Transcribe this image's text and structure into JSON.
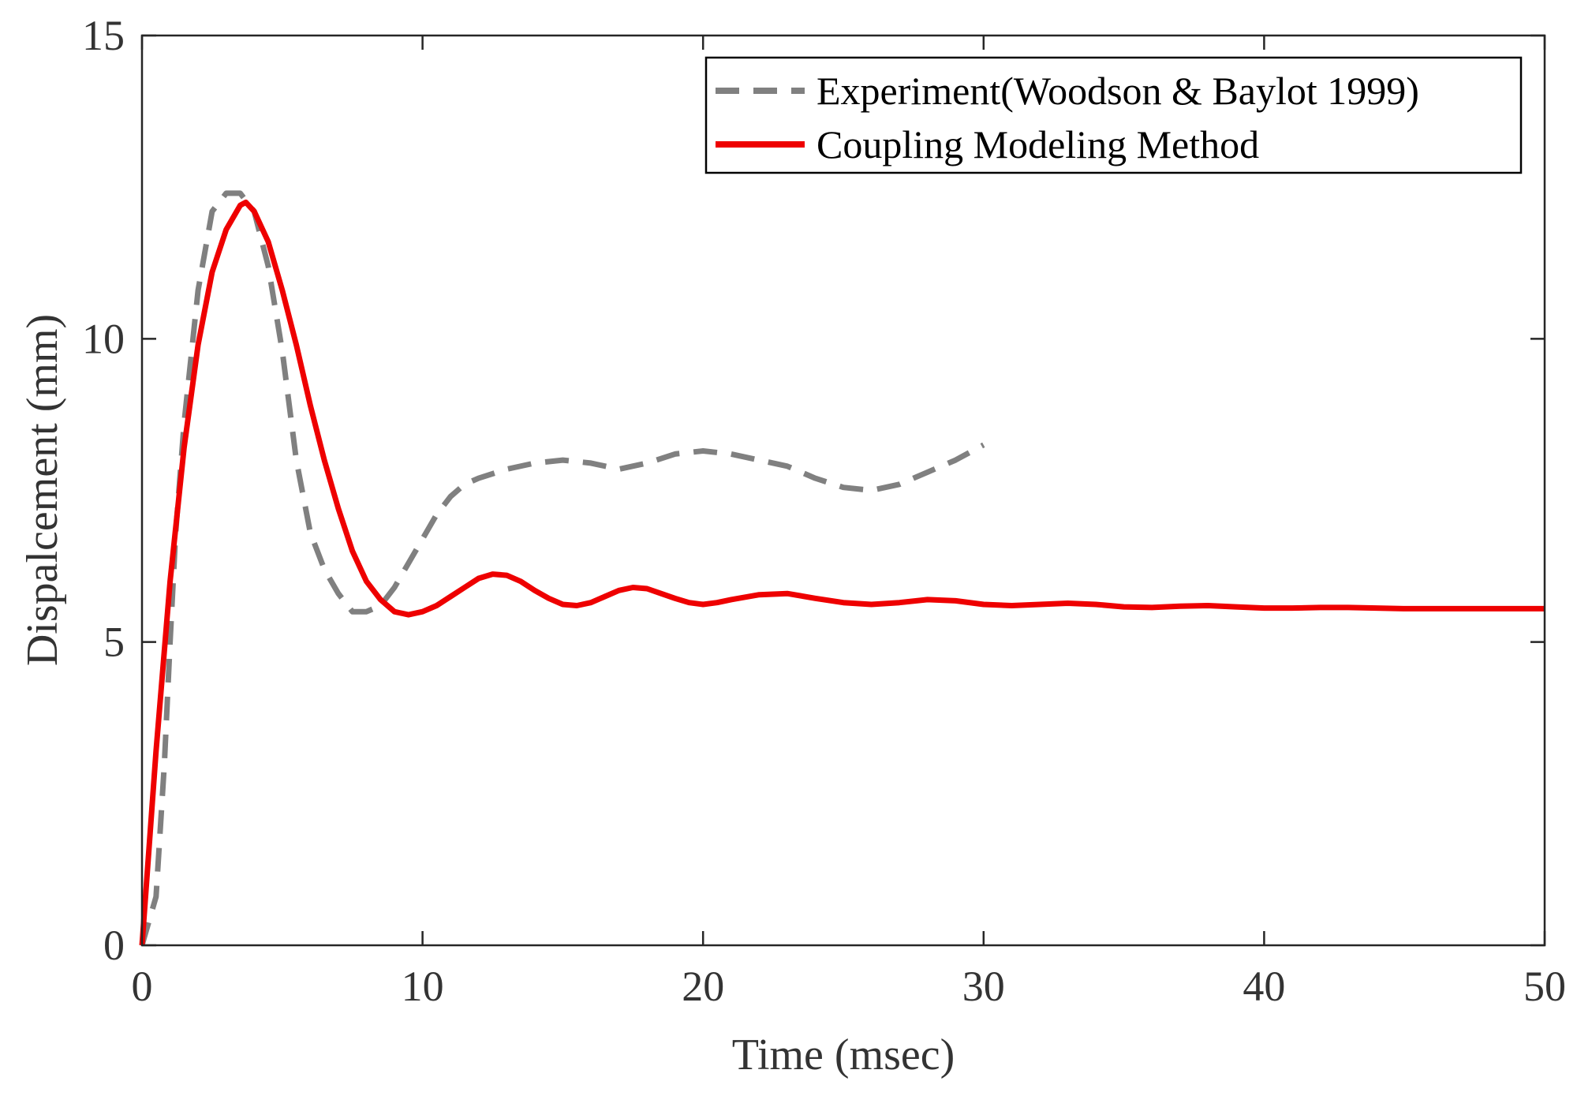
{
  "chart_data": {
    "type": "line",
    "title": "",
    "xlabel": "Time (msec)",
    "ylabel": "Dispalcement (mm)",
    "xlim": [
      0,
      50
    ],
    "ylim": [
      0,
      15
    ],
    "xticks": [
      0,
      10,
      20,
      30,
      40,
      50
    ],
    "yticks": [
      0,
      5,
      10,
      15
    ],
    "grid": false,
    "legend_position": "top-right",
    "series": [
      {
        "name": "Experiment(Woodson & Baylot 1999)",
        "style": "dashed",
        "color": "#808080",
        "x": [
          0,
          0.5,
          0.8,
          1.0,
          1.2,
          1.5,
          2.0,
          2.5,
          3.0,
          3.5,
          4.0,
          4.5,
          5.0,
          5.5,
          6.0,
          6.5,
          7.0,
          7.5,
          8.0,
          8.5,
          9.0,
          9.5,
          10.0,
          10.5,
          11.0,
          11.5,
          12.0,
          13.0,
          14.0,
          15.0,
          16.0,
          17.0,
          18.0,
          19.0,
          20.0,
          21.0,
          22.0,
          23.0,
          24.0,
          25.0,
          26.0,
          27.0,
          28.0,
          29.0,
          30.0
        ],
        "y": [
          0,
          0.8,
          3.0,
          5.0,
          6.8,
          8.6,
          10.8,
          12.1,
          12.4,
          12.4,
          12.1,
          11.2,
          9.8,
          8.0,
          6.8,
          6.2,
          5.8,
          5.5,
          5.5,
          5.6,
          5.9,
          6.3,
          6.7,
          7.1,
          7.4,
          7.6,
          7.7,
          7.85,
          7.95,
          8.0,
          7.95,
          7.85,
          7.95,
          8.1,
          8.15,
          8.1,
          8.0,
          7.9,
          7.7,
          7.55,
          7.5,
          7.6,
          7.8,
          8.0,
          8.25
        ]
      },
      {
        "name": "Coupling Modeling Method",
        "style": "solid",
        "color": "#ee0000",
        "x": [
          0,
          0.5,
          1.0,
          1.5,
          2.0,
          2.5,
          3.0,
          3.5,
          3.7,
          4.0,
          4.5,
          5.0,
          5.5,
          6.0,
          6.5,
          7.0,
          7.5,
          8.0,
          8.5,
          9.0,
          9.5,
          10.0,
          10.5,
          11.0,
          11.5,
          12.0,
          12.5,
          13.0,
          13.5,
          14.0,
          14.5,
          15.0,
          15.5,
          16.0,
          16.5,
          17.0,
          17.5,
          18.0,
          18.5,
          19.0,
          19.5,
          20.0,
          20.5,
          21.0,
          22.0,
          23.0,
          24.0,
          25.0,
          26.0,
          27.0,
          28.0,
          29.0,
          30.0,
          31.0,
          32.0,
          33.0,
          34.0,
          35.0,
          36.0,
          37.0,
          38.0,
          39.0,
          40.0,
          41.0,
          42.0,
          43.0,
          44.0,
          45.0,
          46.0,
          47.0,
          48.0,
          49.0,
          50.0
        ],
        "y": [
          0,
          3.2,
          6.0,
          8.2,
          9.9,
          11.1,
          11.8,
          12.2,
          12.25,
          12.1,
          11.6,
          10.8,
          9.9,
          8.9,
          8.0,
          7.2,
          6.5,
          6.0,
          5.7,
          5.5,
          5.45,
          5.5,
          5.6,
          5.75,
          5.9,
          6.05,
          6.12,
          6.1,
          6.0,
          5.85,
          5.72,
          5.62,
          5.6,
          5.65,
          5.75,
          5.85,
          5.9,
          5.88,
          5.8,
          5.72,
          5.65,
          5.62,
          5.65,
          5.7,
          5.78,
          5.8,
          5.72,
          5.65,
          5.62,
          5.65,
          5.7,
          5.68,
          5.62,
          5.6,
          5.62,
          5.64,
          5.62,
          5.58,
          5.57,
          5.59,
          5.6,
          5.58,
          5.56,
          5.56,
          5.57,
          5.57,
          5.56,
          5.55,
          5.55,
          5.55,
          5.55,
          5.55,
          5.55
        ]
      }
    ]
  }
}
